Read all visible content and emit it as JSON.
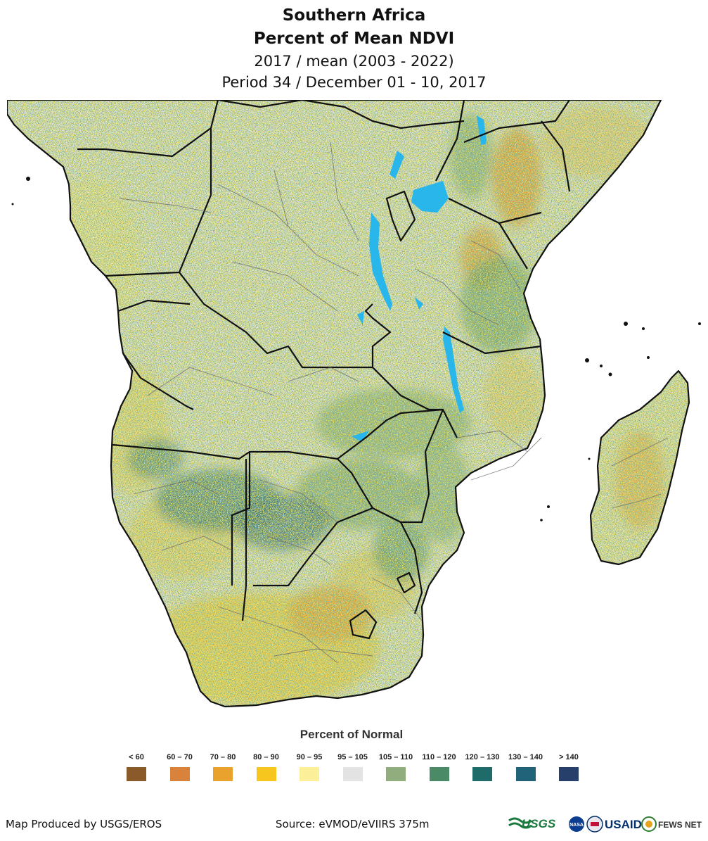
{
  "title": {
    "line1": "Southern Africa",
    "line2": "Percent of Mean NDVI",
    "line3": "2017 / mean (2003 - 2022)",
    "line4": "Period 34 / December 01 - 10, 2017"
  },
  "legend": {
    "title": "Percent of Normal",
    "items": [
      {
        "label": "< 60",
        "color": "#8a5a2b"
      },
      {
        "label": "60 – 70",
        "color": "#d9823b"
      },
      {
        "label": "70 – 80",
        "color": "#eaa22e"
      },
      {
        "label": "80 – 90",
        "color": "#f6c51e"
      },
      {
        "label": "90 – 95",
        "color": "#fbf099"
      },
      {
        "label": "95 – 105",
        "color": "#e3e3e3"
      },
      {
        "label": "105 – 110",
        "color": "#91ad7e"
      },
      {
        "label": "110 – 120",
        "color": "#4a8a66"
      },
      {
        "label": "120 – 130",
        "color": "#1f6b6a"
      },
      {
        "label": "130 – 140",
        "color": "#216479"
      },
      {
        "label": "> 140",
        "color": "#273f6b"
      }
    ]
  },
  "footer": {
    "produced_by": "Map Produced by USGS/EROS",
    "source": "Source: eVMOD/eVIIRS 375m"
  },
  "logos": {
    "usgs": "USGS",
    "nasa": "NASA",
    "usaid": "USAID",
    "fewsnet": "FEWS NET"
  },
  "colors": {
    "land_base": "#e2e2e0",
    "water": "#29b6ea",
    "border": "#111111"
  }
}
